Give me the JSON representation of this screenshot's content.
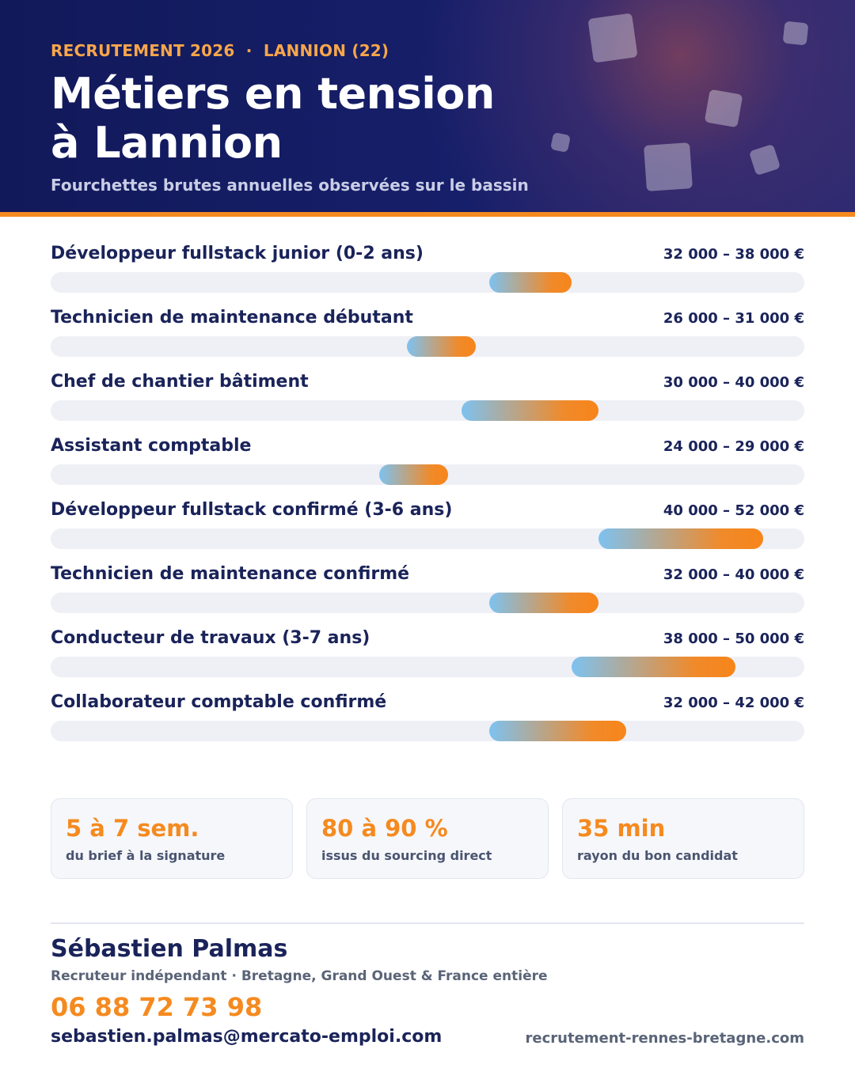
{
  "header": {
    "eyebrow": "RECRUTEMENT 2026  ·  LANNION (22)",
    "title_line1": "Métiers en tension",
    "title_line2": "à Lannion",
    "subtitle": "Fourchettes brutes annuelles observées sur le bassin"
  },
  "chart_data": {
    "type": "bar",
    "scale": [
      0,
      55000
    ],
    "unit": "€",
    "rows": [
      {
        "label": "Développeur fullstack junior (0-2 ans)",
        "range_text": "32 000 – 38 000 €",
        "min": 32000,
        "max": 38000
      },
      {
        "label": "Technicien de maintenance débutant",
        "range_text": "26 000 – 31 000 €",
        "min": 26000,
        "max": 31000
      },
      {
        "label": "Chef de chantier bâtiment",
        "range_text": "30 000 – 40 000 €",
        "min": 30000,
        "max": 40000
      },
      {
        "label": "Assistant comptable",
        "range_text": "24 000 – 29 000 €",
        "min": 24000,
        "max": 29000
      },
      {
        "label": "Développeur fullstack confirmé (3-6 ans)",
        "range_text": "40 000 – 52 000 €",
        "min": 40000,
        "max": 52000
      },
      {
        "label": "Technicien de maintenance confirmé",
        "range_text": "32 000 – 40 000 €",
        "min": 32000,
        "max": 40000
      },
      {
        "label": "Conducteur de travaux (3-7 ans)",
        "range_text": "38 000 – 50 000 €",
        "min": 38000,
        "max": 50000
      },
      {
        "label": "Collaborateur comptable confirmé",
        "range_text": "32 000 – 42 000 €",
        "min": 32000,
        "max": 42000
      }
    ]
  },
  "stats": [
    {
      "value": "5 à 7 sem.",
      "label": "du brief à la signature"
    },
    {
      "value": "80 à 90 %",
      "label": "issus du sourcing direct"
    },
    {
      "value": "35 min",
      "label": "rayon du bon candidat"
    }
  ],
  "contact": {
    "name": "Sébastien Palmas",
    "role": "Recruteur indépendant · Bretagne, Grand Ouest & France entière",
    "phone": "06 88 72 73 98",
    "email": "sebastien.palmas@mercato-emploi.com",
    "website": "recrutement-rennes-bretagne.com"
  },
  "colors": {
    "navy": "#1a2359",
    "orange": "#f58a1f",
    "gradient_start": "#7dc2f0",
    "gradient_end": "#f7851a",
    "track": "#eef0f6"
  }
}
